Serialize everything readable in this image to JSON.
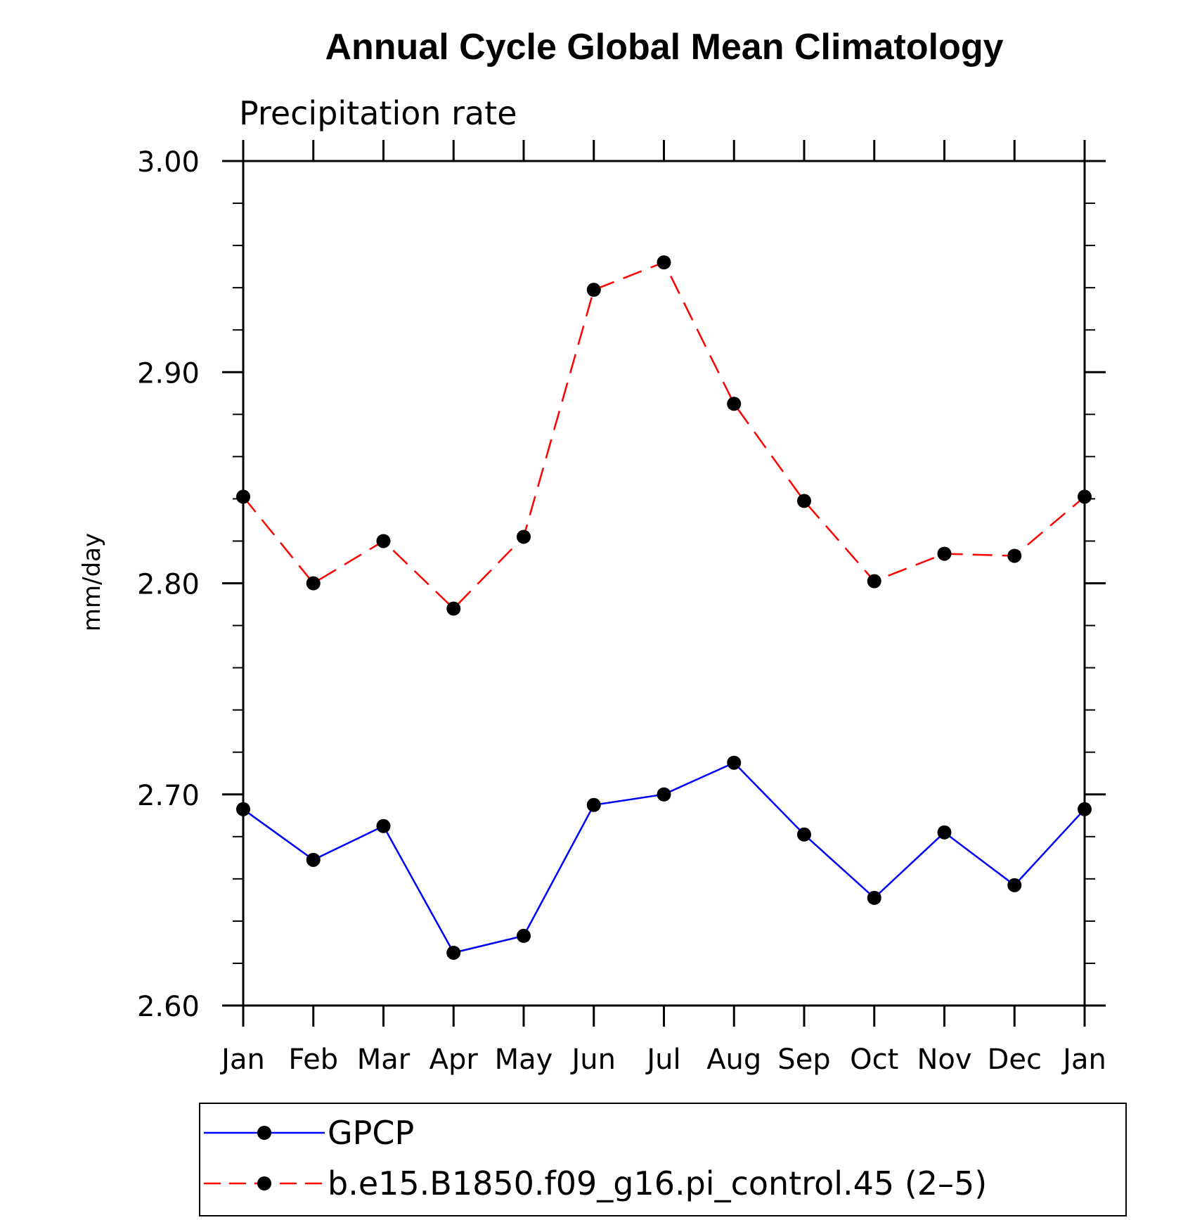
{
  "chart_data": {
    "type": "line",
    "title": "Annual Cycle Global Mean Climatology",
    "subtitle": "Precipitation rate",
    "ylabel": "mm/day",
    "xlabel": "",
    "categories": [
      "Jan",
      "Feb",
      "Mar",
      "Apr",
      "May",
      "Jun",
      "Jul",
      "Aug",
      "Sep",
      "Oct",
      "Nov",
      "Dec",
      "Jan"
    ],
    "ylim": [
      2.6,
      3.0
    ],
    "yticks": [
      "2.60",
      "2.70",
      "2.80",
      "2.90",
      "3.00"
    ],
    "grid": false,
    "legend_position": "bottom",
    "series": [
      {
        "name": "GPCP",
        "color": "#0000ff",
        "dash": "solid",
        "marker": "filled-circle",
        "values": [
          2.693,
          2.669,
          2.685,
          2.625,
          2.633,
          2.695,
          2.7,
          2.715,
          2.681,
          2.651,
          2.682,
          2.657,
          2.693
        ]
      },
      {
        "name": "b.e15.B1850.f09_g16.pi_control.45 (2–5)",
        "color": "#ff0000",
        "dash": "dashed",
        "marker": "filled-circle",
        "values": [
          2.841,
          2.8,
          2.82,
          2.788,
          2.822,
          2.939,
          2.952,
          2.885,
          2.839,
          2.801,
          2.814,
          2.813,
          2.841
        ]
      }
    ]
  }
}
